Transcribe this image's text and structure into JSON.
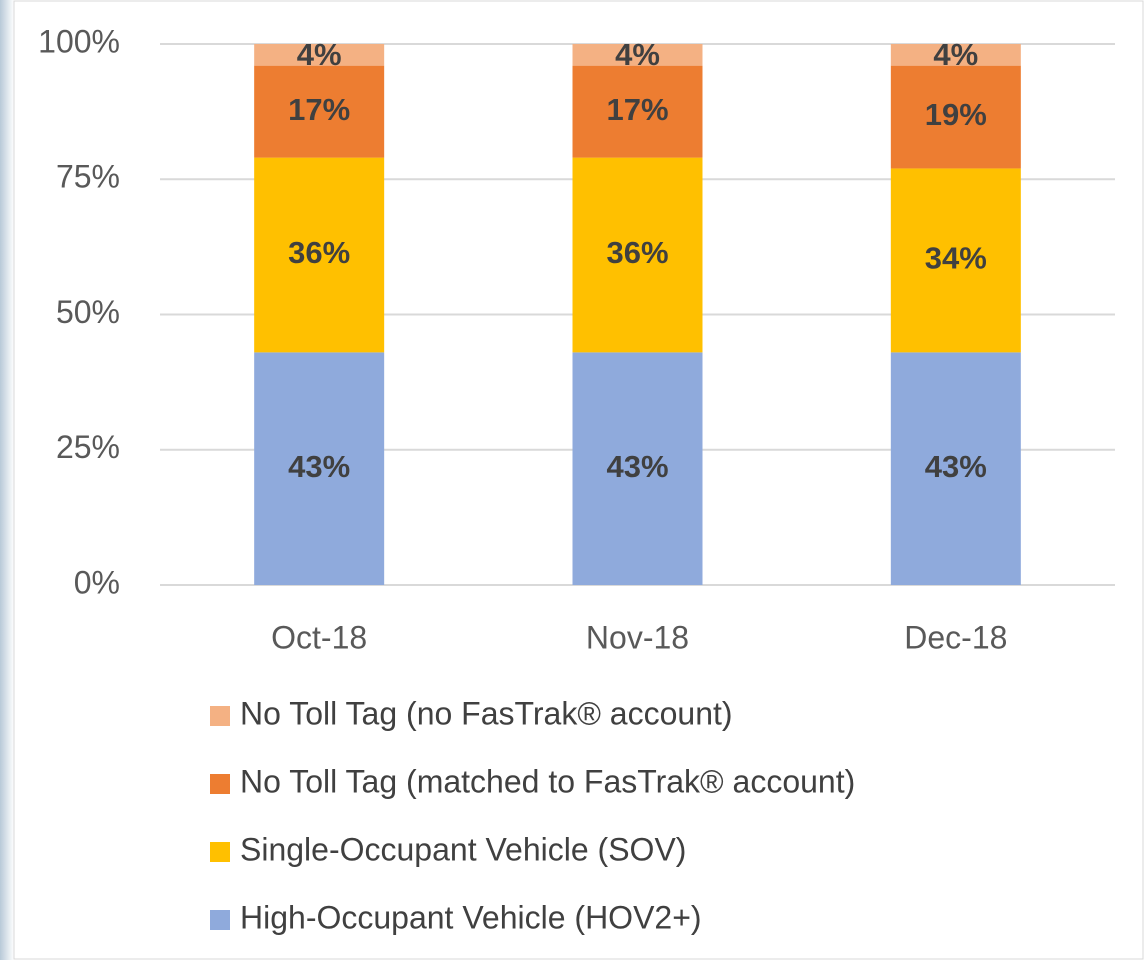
{
  "chart_data": {
    "type": "stacked_bar",
    "categories": [
      "Oct-18",
      "Nov-18",
      "Dec-18"
    ],
    "series": [
      {
        "name": "High-Occupant Vehicle (HOV2+)",
        "color": "#8faadc",
        "values": [
          43,
          43,
          43
        ],
        "value_labels": [
          "43%",
          "43%",
          "43%"
        ]
      },
      {
        "name": "Single-Occupant Vehicle (SOV)",
        "color": "#ffc000",
        "values": [
          36,
          36,
          34
        ],
        "value_labels": [
          "36%",
          "36%",
          "34%"
        ]
      },
      {
        "name": "No Toll Tag (matched to FasTrak® account)",
        "color": "#ed7d31",
        "values": [
          17,
          17,
          19
        ],
        "value_labels": [
          "17%",
          "17%",
          "19%"
        ]
      },
      {
        "name": "No Toll Tag (no FasTrak® account)",
        "color": "#f4b183",
        "values": [
          4,
          4,
          4
        ],
        "value_labels": [
          "4%",
          "4%",
          "4%"
        ]
      }
    ],
    "ylim": [
      0,
      100
    ],
    "yticks": [
      {
        "value": 0,
        "label": "0%"
      },
      {
        "value": 25,
        "label": "25%"
      },
      {
        "value": 50,
        "label": "50%"
      },
      {
        "value": 75,
        "label": "75%"
      },
      {
        "value": 100,
        "label": "100%"
      }
    ],
    "grid": true,
    "legend": "bottom"
  }
}
